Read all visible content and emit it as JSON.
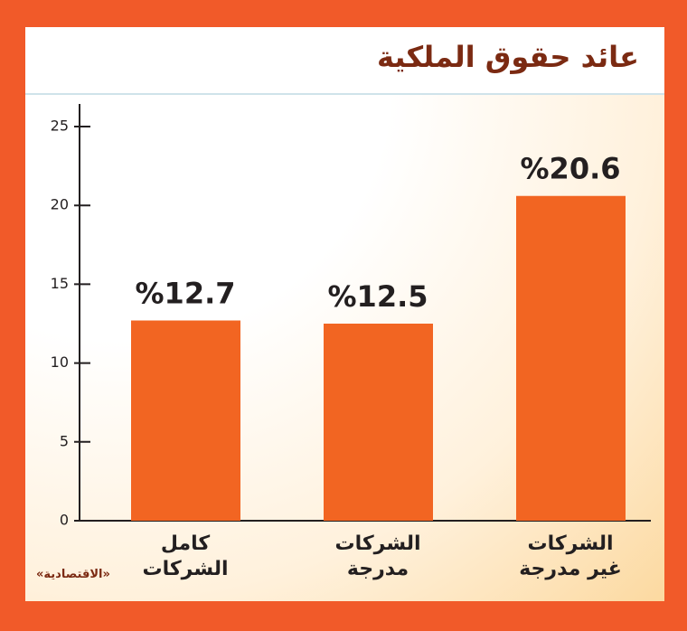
{
  "chart_data": {
    "type": "bar",
    "title": "عائد حقوق الملكية",
    "source": "«الاقتصادية»",
    "categories": [
      "كامل الشركات",
      "الشركات مدرجة",
      "الشركات غير مدرجة"
    ],
    "values": [
      12.7,
      12.5,
      20.6
    ],
    "value_labels": [
      "%12.7",
      "%12.5",
      "%20.6"
    ],
    "color": "#f26522",
    "ylim": [
      0,
      25
    ],
    "yticks": [
      0,
      5,
      10,
      15,
      20,
      25
    ],
    "grid": false
  }
}
